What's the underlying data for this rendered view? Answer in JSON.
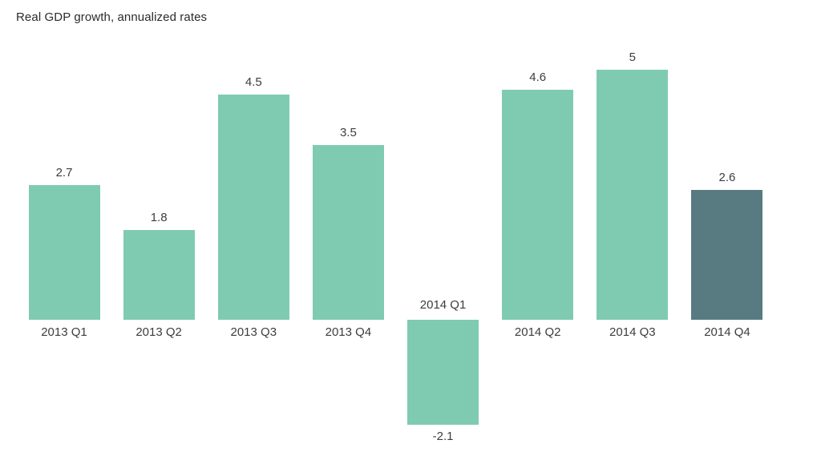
{
  "chart_data": {
    "type": "bar",
    "title": "Real GDP growth, annualized rates",
    "categories": [
      "2013 Q1",
      "2013 Q2",
      "2013 Q3",
      "2013 Q4",
      "2014 Q1",
      "2014 Q2",
      "2014 Q3",
      "2014 Q4"
    ],
    "values": [
      2.7,
      1.8,
      4.5,
      3.5,
      -2.1,
      4.6,
      5,
      2.6
    ],
    "value_labels": [
      "2.7",
      "1.8",
      "4.5",
      "3.5",
      "-2.1",
      "4.6",
      "5",
      "2.6"
    ],
    "colors": [
      "#7fcbb1",
      "#7fcbb1",
      "#7fcbb1",
      "#7fcbb1",
      "#7fcbb1",
      "#7fcbb1",
      "#7fcbb1",
      "#577b80"
    ],
    "default_bar_color": "#7fcbb1",
    "highlight_bar_color": "#577b80",
    "text_color": "#3d3d3d",
    "xlabel": "",
    "ylabel": "",
    "ylim": [
      -2.6,
      5.4
    ],
    "grid": false,
    "axes_visible": false,
    "legend": null,
    "data_labels": "outside-end, below bar when negative",
    "category_labels": "at baseline, above baseline when value negative"
  }
}
